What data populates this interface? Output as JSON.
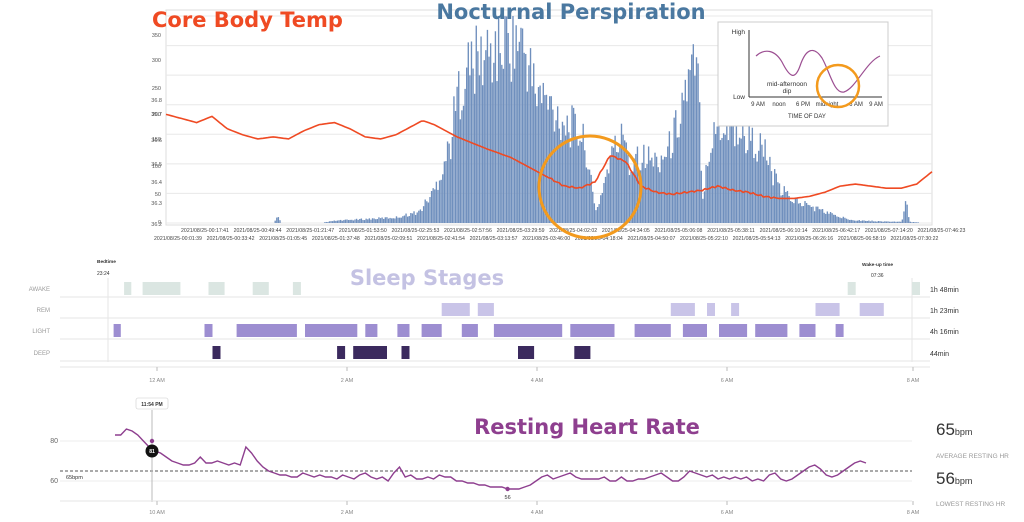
{
  "titles": {
    "temp": "Core Body Temp",
    "perspiration": "Nocturnal Perspiration",
    "sleep": "Sleep Stages",
    "hr": "Resting Heart Rate"
  },
  "colors": {
    "temp_title": "#ef4a23",
    "perspiration_title": "#4a78a0",
    "sleep_title": "#c4c2e3",
    "hr_title": "#8e3f8f",
    "temp_line": "#ef4a23",
    "bars": "#6f8fbd",
    "highlight": "#f39a1d",
    "awake": "#dbe6e2",
    "rem": "#c9c4e8",
    "light": "#9d8ed1",
    "deep": "#3b2a5e",
    "hr_line": "#8e3f8f"
  },
  "chart_data": [
    {
      "type": "bar",
      "name_id": "perspiration",
      "title": "Nocturnal Perspiration",
      "y_ticks_left": [
        "36.8",
        "36.7",
        "36.6",
        "36.5",
        "36.4",
        "36.3",
        "36.2"
      ],
      "y_ticks_bars": [
        "350",
        "300",
        "250",
        "200",
        "150",
        "100",
        "50",
        "0"
      ],
      "ylim": [
        0,
        350
      ],
      "x_ticks_top": [
        "2021/08/25-00:17:41",
        "2021/08/25-00:49:44",
        "2021/08/25-01:21:47",
        "2021/08/25-01:53:50",
        "2021/08/25-02:25:53",
        "2021/08/25-02:57:56",
        "2021/08/25-03:29:59",
        "2021/08/25-04:02:02",
        "2021/08/25-04:34:05",
        "2021/08/25-05:06:08",
        "2021/08/25-05:38:11",
        "2021/08/25-06:10:14",
        "2021/08/25-06:42:17",
        "2021/08/25-07:14:20",
        "2021/08/25-07:46:23"
      ],
      "x_ticks_bottom": [
        "2021/08/25-00:01:39",
        "2021/08/25-00:33:42",
        "2021/08/25-01:05:45",
        "2021/08/25-01:37:48",
        "2021/08/25-02:09:51",
        "2021/08/25-02:41:54",
        "2021/08/25-03:13:57",
        "2021/08/25-03:46:00",
        "2021/08/25-04:18:04",
        "2021/08/25-04:50:07",
        "2021/08/25-05:22:10",
        "2021/08/25-05:54:13",
        "2021/08/25-06:26:16",
        "2021/08/25-06:58:19",
        "2021/08/25-07:30:22"
      ],
      "bar_profile": [
        [
          0,
          0
        ],
        [
          0.14,
          0
        ],
        [
          0.145,
          12
        ],
        [
          0.15,
          0
        ],
        [
          0.2,
          0
        ],
        [
          0.22,
          4
        ],
        [
          0.3,
          10
        ],
        [
          0.33,
          20
        ],
        [
          0.35,
          60
        ],
        [
          0.37,
          140
        ],
        [
          0.38,
          230
        ],
        [
          0.39,
          270
        ],
        [
          0.4,
          285
        ],
        [
          0.42,
          300
        ],
        [
          0.44,
          320
        ],
        [
          0.455,
          335
        ],
        [
          0.47,
          300
        ],
        [
          0.48,
          240
        ],
        [
          0.5,
          210
        ],
        [
          0.52,
          180
        ],
        [
          0.54,
          160
        ],
        [
          0.55,
          120
        ],
        [
          0.555,
          60
        ],
        [
          0.56,
          20
        ],
        [
          0.565,
          40
        ],
        [
          0.58,
          120
        ],
        [
          0.6,
          165
        ],
        [
          0.605,
          80
        ],
        [
          0.61,
          130
        ],
        [
          0.62,
          120
        ],
        [
          0.64,
          110
        ],
        [
          0.655,
          130
        ],
        [
          0.665,
          170
        ],
        [
          0.675,
          230
        ],
        [
          0.685,
          260
        ],
        [
          0.69,
          280
        ],
        [
          0.695,
          230
        ],
        [
          0.7,
          40
        ],
        [
          0.705,
          120
        ],
        [
          0.72,
          175
        ],
        [
          0.74,
          170
        ],
        [
          0.76,
          150
        ],
        [
          0.78,
          130
        ],
        [
          0.79,
          90
        ],
        [
          0.8,
          60
        ],
        [
          0.82,
          40
        ],
        [
          0.84,
          30
        ],
        [
          0.86,
          20
        ],
        [
          0.88,
          10
        ],
        [
          0.9,
          5
        ],
        [
          0.93,
          3
        ],
        [
          0.96,
          2
        ],
        [
          0.965,
          40
        ],
        [
          0.97,
          2
        ],
        [
          1,
          0
        ]
      ],
      "temp_profile": [
        [
          0,
          36.73
        ],
        [
          0.02,
          36.71
        ],
        [
          0.04,
          36.69
        ],
        [
          0.06,
          36.72
        ],
        [
          0.08,
          36.66
        ],
        [
          0.1,
          36.63
        ],
        [
          0.12,
          36.61
        ],
        [
          0.14,
          36.62
        ],
        [
          0.16,
          36.61
        ],
        [
          0.18,
          36.65
        ],
        [
          0.2,
          36.68
        ],
        [
          0.22,
          36.69
        ],
        [
          0.24,
          36.66
        ],
        [
          0.26,
          36.62
        ],
        [
          0.28,
          36.61
        ],
        [
          0.3,
          36.63
        ],
        [
          0.32,
          36.67
        ],
        [
          0.335,
          36.7
        ],
        [
          0.35,
          36.68
        ],
        [
          0.38,
          36.62
        ],
        [
          0.42,
          36.56
        ],
        [
          0.45,
          36.52
        ],
        [
          0.48,
          36.46
        ],
        [
          0.5,
          36.42
        ],
        [
          0.52,
          36.38
        ],
        [
          0.54,
          36.37
        ],
        [
          0.56,
          36.4
        ],
        [
          0.58,
          36.53
        ],
        [
          0.6,
          36.5
        ],
        [
          0.62,
          36.38
        ],
        [
          0.64,
          36.35
        ],
        [
          0.66,
          36.34
        ],
        [
          0.68,
          36.35
        ],
        [
          0.7,
          36.36
        ],
        [
          0.72,
          36.38
        ],
        [
          0.74,
          36.36
        ],
        [
          0.76,
          36.35
        ],
        [
          0.78,
          36.33
        ],
        [
          0.8,
          36.32
        ],
        [
          0.82,
          36.32
        ],
        [
          0.84,
          36.33
        ],
        [
          0.86,
          36.35
        ],
        [
          0.88,
          36.38
        ],
        [
          0.9,
          36.39
        ],
        [
          0.92,
          36.38
        ],
        [
          0.94,
          36.37
        ],
        [
          0.96,
          36.37
        ],
        [
          0.98,
          36.39
        ],
        [
          1.0,
          36.45
        ]
      ]
    },
    {
      "type": "line",
      "name_id": "circadian-inset",
      "y_labels": [
        "High",
        "Low"
      ],
      "x_labels": [
        "9 AM",
        "noon",
        "6 PM",
        "midnight",
        "6 AM",
        "9 AM"
      ],
      "xlabel": "TIME OF DAY",
      "annotation": "mid-afternoon dip"
    },
    {
      "type": "gantt",
      "name_id": "sleep-stages",
      "title": "Sleep Stages",
      "bedtime_label": "Bedtime",
      "bedtime_time": "23:24",
      "wakeup_label": "Wake-up time",
      "wakeup_time": "07:36",
      "x_ticks": [
        "12 AM",
        "2 AM",
        "4 AM",
        "6 AM",
        "8 AM"
      ],
      "stages": [
        {
          "label": "AWAKE",
          "total": "1h 48min",
          "segments": [
            [
              0.02,
              0.029
            ],
            [
              0.043,
              0.09
            ],
            [
              0.125,
              0.145
            ],
            [
              0.18,
              0.2
            ],
            [
              0.23,
              0.24
            ],
            [
              0.92,
              0.93
            ],
            [
              1.0,
              1.01
            ]
          ]
        },
        {
          "label": "REM",
          "total": "1h 23min",
          "segments": [
            [
              0.415,
              0.45
            ],
            [
              0.46,
              0.48
            ],
            [
              0.7,
              0.73
            ],
            [
              0.745,
              0.755
            ],
            [
              0.775,
              0.785
            ],
            [
              0.88,
              0.91
            ],
            [
              0.935,
              0.965
            ]
          ]
        },
        {
          "label": "LIGHT",
          "total": "4h 16min",
          "segments": [
            [
              0.007,
              0.016
            ],
            [
              0.12,
              0.13
            ],
            [
              0.16,
              0.235
            ],
            [
              0.245,
              0.31
            ],
            [
              0.32,
              0.335
            ],
            [
              0.36,
              0.375
            ],
            [
              0.39,
              0.415
            ],
            [
              0.44,
              0.46
            ],
            [
              0.48,
              0.565
            ],
            [
              0.575,
              0.63
            ],
            [
              0.655,
              0.7
            ],
            [
              0.715,
              0.745
            ],
            [
              0.76,
              0.795
            ],
            [
              0.805,
              0.845
            ],
            [
              0.86,
              0.88
            ],
            [
              0.905,
              0.915
            ]
          ]
        },
        {
          "label": "DEEP",
          "total": "44min",
          "segments": [
            [
              0.13,
              0.14
            ],
            [
              0.285,
              0.295
            ],
            [
              0.305,
              0.347
            ],
            [
              0.365,
              0.375
            ],
            [
              0.51,
              0.53
            ],
            [
              0.58,
              0.6
            ]
          ]
        }
      ]
    },
    {
      "type": "line",
      "name_id": "resting-heart-rate",
      "title": "Resting Heart Rate",
      "x_ticks": [
        "10 AM",
        "2 AM",
        "4 AM",
        "6 AM",
        "8 AM"
      ],
      "y_ticks": [
        "80",
        "60"
      ],
      "ylim": [
        50,
        90
      ],
      "avg_label": "65bpm",
      "avg_value": 65,
      "avg_big": "65",
      "avg_unit": "bpm",
      "avg_caption": "AVERAGE RESTING HR",
      "low_big": "56",
      "low_unit": "bpm",
      "low_caption": "LOWEST RESTING HR",
      "marker_time": "11:54 PM",
      "marker_value": "81",
      "min_value": "56",
      "values": [
        83,
        83,
        86,
        85,
        83,
        80,
        77,
        75,
        74,
        72,
        70,
        69,
        68,
        68,
        69,
        72,
        69,
        69,
        70,
        69,
        68,
        69,
        68,
        77,
        74,
        70,
        67,
        65,
        64,
        63,
        63,
        62,
        62,
        64,
        63,
        62,
        63,
        62,
        62,
        61,
        63,
        62,
        61,
        63,
        64,
        62,
        61,
        62,
        60,
        64,
        67,
        62,
        63,
        61,
        61,
        62,
        61,
        63,
        62,
        62,
        60,
        60,
        59,
        59,
        58,
        58,
        57,
        57,
        57,
        56,
        56,
        56,
        57,
        58,
        60,
        62,
        63,
        61,
        62,
        63,
        64,
        62,
        61,
        61,
        61,
        61,
        62,
        60,
        60,
        62,
        60,
        60,
        61,
        61,
        62,
        63,
        64,
        62,
        60,
        60,
        62,
        65,
        64,
        63,
        62,
        63,
        61,
        62,
        61,
        62,
        61,
        62,
        60,
        61,
        60,
        63,
        64,
        61,
        60,
        61,
        63,
        65,
        67,
        68,
        66,
        63,
        62,
        63,
        65,
        67,
        69,
        70,
        69
      ]
    }
  ]
}
